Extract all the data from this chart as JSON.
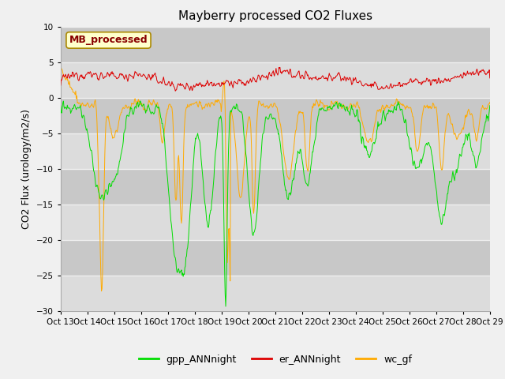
{
  "title": "Mayberry processed CO2 Fluxes",
  "ylabel": "CO2 Flux (urology/m2/s)",
  "ylim": [
    -30,
    10
  ],
  "yticks": [
    -30,
    -25,
    -20,
    -15,
    -10,
    -5,
    0,
    5,
    10
  ],
  "color_gpp": "#00dd00",
  "color_er": "#dd0000",
  "color_wc": "#ffaa00",
  "legend_box_color": "#ffffcc",
  "legend_box_edge": "#bbaa00",
  "legend_text_color": "#880000",
  "legend_label": "MB_processed",
  "bg_color": "#dcdcdc",
  "bg_lower": "#c8c8c8",
  "grid_color": "#f0f0f0",
  "fig_bg": "#f0f0f0",
  "title_fontsize": 11,
  "label_fontsize": 9,
  "tick_fontsize": 7.5,
  "linewidth": 0.7,
  "n_points": 768
}
